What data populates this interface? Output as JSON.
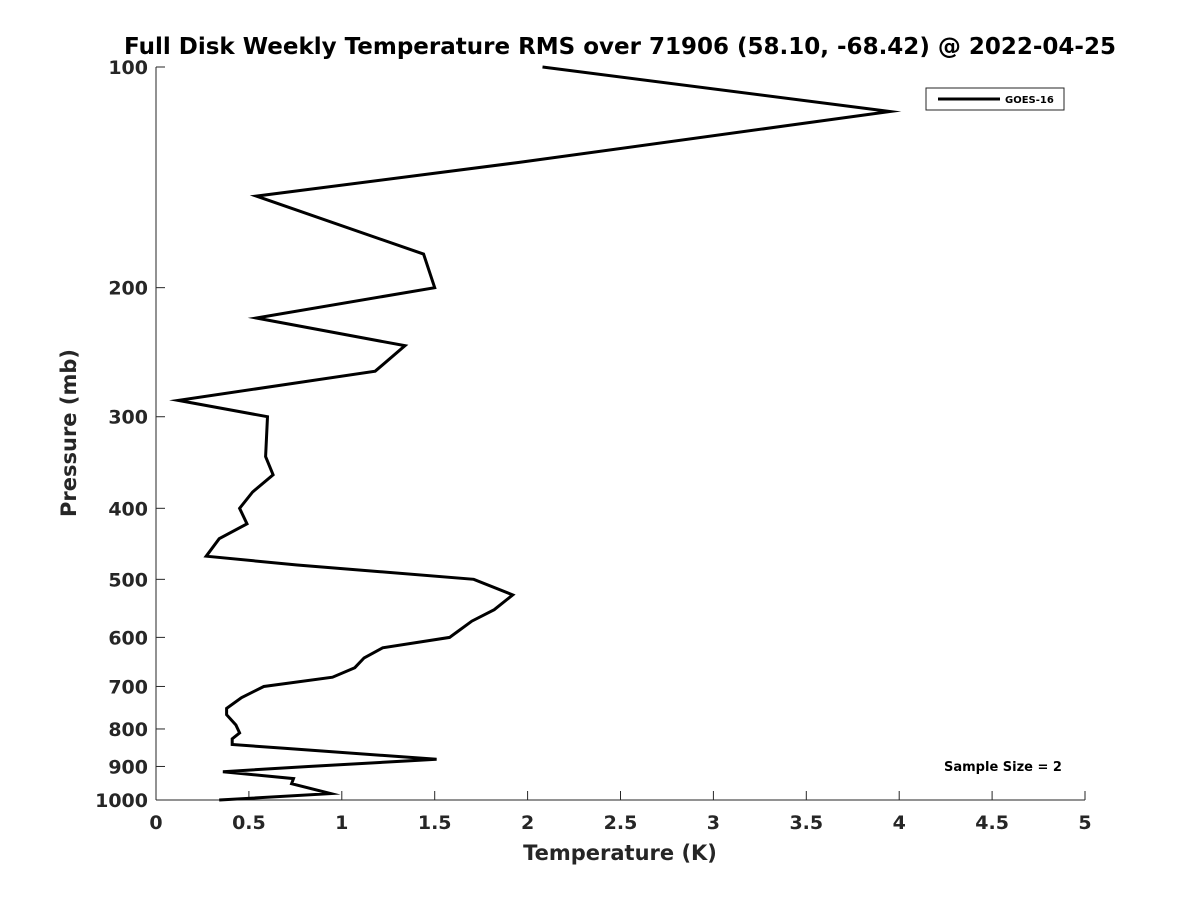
{
  "chart_data": {
    "type": "line",
    "title": "Full Disk Weekly Temperature RMS over 71906 (58.10, -68.42) @ 2022-04-25",
    "xlabel": "Temperature (K)",
    "ylabel": "Pressure (mb)",
    "xlim": [
      0,
      5
    ],
    "ylim": [
      1000,
      100
    ],
    "y_scale": "log",
    "y_reversed": true,
    "grid": false,
    "legend_position": "top-right",
    "x_ticks": [
      0,
      0.5,
      1,
      1.5,
      2,
      2.5,
      3,
      3.5,
      4,
      4.5,
      5
    ],
    "x_tick_labels": [
      "0",
      "0.5",
      "1",
      "1.5",
      "2",
      "2.5",
      "3",
      "3.5",
      "4",
      "4.5",
      "5"
    ],
    "y_ticks": [
      100,
      200,
      300,
      400,
      500,
      600,
      700,
      800,
      900,
      1000
    ],
    "y_tick_labels": [
      "100",
      "200",
      "300",
      "400",
      "500",
      "600",
      "700",
      "800",
      "900",
      "1000"
    ],
    "series": [
      {
        "name": "GOES-16",
        "color": "#000000",
        "points": [
          [
            2.08,
            100
          ],
          [
            3.95,
            115
          ],
          [
            1.95,
            135
          ],
          [
            0.54,
            150
          ],
          [
            1.44,
            180
          ],
          [
            1.5,
            200
          ],
          [
            0.54,
            220
          ],
          [
            1.34,
            240
          ],
          [
            1.18,
            260
          ],
          [
            0.12,
            285
          ],
          [
            0.6,
            300
          ],
          [
            0.59,
            340
          ],
          [
            0.63,
            360
          ],
          [
            0.52,
            380
          ],
          [
            0.45,
            400
          ],
          [
            0.49,
            420
          ],
          [
            0.34,
            440
          ],
          [
            0.27,
            465
          ],
          [
            0.76,
            478
          ],
          [
            1.71,
            500
          ],
          [
            1.92,
            525
          ],
          [
            1.82,
            550
          ],
          [
            1.7,
            570
          ],
          [
            1.62,
            590
          ],
          [
            1.58,
            600
          ],
          [
            1.22,
            620
          ],
          [
            1.12,
            640
          ],
          [
            1.07,
            660
          ],
          [
            0.95,
            680
          ],
          [
            0.58,
            700
          ],
          [
            0.46,
            725
          ],
          [
            0.38,
            750
          ],
          [
            0.38,
            765
          ],
          [
            0.43,
            790
          ],
          [
            0.45,
            810
          ],
          [
            0.41,
            825
          ],
          [
            0.41,
            840
          ],
          [
            0.69,
            850
          ],
          [
            1.51,
            880
          ],
          [
            0.82,
            900
          ],
          [
            0.36,
            915
          ],
          [
            0.74,
            935
          ],
          [
            0.73,
            950
          ],
          [
            0.94,
            980
          ],
          [
            0.34,
            1000
          ]
        ]
      }
    ],
    "annotations": [
      "Sample Size = 2"
    ]
  }
}
